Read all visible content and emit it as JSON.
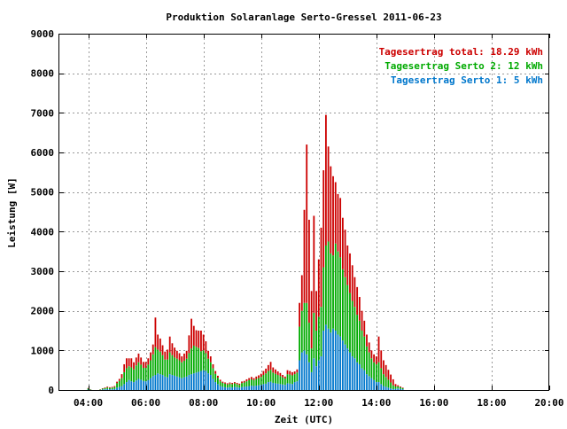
{
  "chart_data": {
    "type": "bar",
    "title": "Produktion Solaranlage Serto-Gressel 2011-06-23",
    "xlabel": "Zeit (UTC)",
    "ylabel": "Leistung [W]",
    "xlim_hours": [
      3,
      20
    ],
    "ylim": [
      0,
      9000
    ],
    "y_ticks": [
      0,
      1000,
      2000,
      3000,
      4000,
      5000,
      6000,
      7000,
      8000,
      9000
    ],
    "x_tick_hours": [
      4,
      6,
      8,
      10,
      12,
      14,
      16,
      18,
      20
    ],
    "x_tick_labels": [
      "04:00",
      "06:00",
      "08:00",
      "10:00",
      "12:00",
      "14:00",
      "16:00",
      "18:00",
      "20:00"
    ],
    "grid": true,
    "legend_position": "top-right",
    "stacked": true,
    "bar_interval_minutes": 5,
    "start_time": "04:00",
    "legend": [
      {
        "text": "Tagesertrag total: 18.29 kWh",
        "color": "#cc0000"
      },
      {
        "text": "Tagesertrag Serto 2: 12 kWh",
        "color": "#00aa00"
      },
      {
        "text": "Tagesertrag Serto 1: 5 kWh",
        "color": "#0077cc"
      }
    ],
    "series": [
      {
        "color": "#0077cc",
        "values": [
          10,
          5,
          0,
          0,
          0,
          0,
          15,
          20,
          25,
          20,
          20,
          25,
          60,
          80,
          100,
          150,
          200,
          250,
          220,
          200,
          240,
          280,
          260,
          230,
          220,
          250,
          300,
          350,
          380,
          420,
          400,
          380,
          340,
          320,
          400,
          380,
          360,
          340,
          320,
          300,
          320,
          340,
          380,
          400,
          420,
          440,
          460,
          480,
          500,
          480,
          420,
          380,
          280,
          200,
          150,
          100,
          80,
          70,
          60,
          70,
          65,
          80,
          70,
          60,
          75,
          80,
          90,
          100,
          110,
          100,
          110,
          120,
          130,
          150,
          160,
          200,
          210,
          180,
          170,
          160,
          150,
          140,
          130,
          170,
          160,
          150,
          200,
          220,
          750,
          950,
          1000,
          900,
          700,
          450,
          800,
          600,
          750,
          850,
          1500,
          1650,
          1550,
          1450,
          1550,
          1500,
          1400,
          1350,
          1250,
          1150,
          1050,
          950,
          850,
          800,
          700,
          650,
          550,
          500,
          400,
          350,
          300,
          250,
          200,
          200,
          150,
          100,
          80,
          60,
          40,
          20,
          30,
          40,
          30,
          20
        ]
      },
      {
        "color": "#00aa00",
        "values": [
          30,
          10,
          0,
          0,
          0,
          10,
          20,
          30,
          40,
          30,
          40,
          50,
          110,
          150,
          200,
          300,
          350,
          350,
          350,
          320,
          380,
          420,
          380,
          330,
          340,
          390,
          450,
          550,
          700,
          600,
          570,
          500,
          430,
          450,
          550,
          500,
          460,
          450,
          430,
          400,
          420,
          450,
          550,
          650,
          700,
          650,
          600,
          500,
          500,
          450,
          370,
          320,
          270,
          210,
          160,
          120,
          100,
          90,
          80,
          90,
          85,
          90,
          80,
          70,
          100,
          110,
          130,
          150,
          160,
          150,
          170,
          180,
          200,
          230,
          260,
          280,
          300,
          260,
          240,
          220,
          200,
          180,
          160,
          230,
          230,
          220,
          200,
          220,
          850,
          1050,
          1200,
          1300,
          1000,
          600,
          1150,
          900,
          1100,
          1250,
          1600,
          2000,
          2200,
          2000,
          1850,
          2200,
          2100,
          2000,
          1800,
          1700,
          1600,
          1500,
          1400,
          1300,
          1200,
          1100,
          950,
          850,
          700,
          600,
          500,
          450,
          450,
          500,
          400,
          300,
          250,
          200,
          150,
          100,
          60,
          50,
          40,
          25
        ]
      },
      {
        "color": "#cc0000",
        "values": [
          10,
          5,
          0,
          0,
          0,
          5,
          10,
          15,
          20,
          20,
          20,
          25,
          40,
          50,
          100,
          200,
          250,
          200,
          230,
          180,
          200,
          220,
          180,
          150,
          150,
          160,
          200,
          250,
          750,
          380,
          330,
          250,
          200,
          250,
          400,
          300,
          250,
          200,
          180,
          150,
          180,
          200,
          450,
          750,
          500,
          420,
          440,
          520,
          400,
          300,
          200,
          150,
          100,
          70,
          50,
          40,
          30,
          30,
          30,
          30,
          30,
          30,
          30,
          30,
          40,
          40,
          50,
          50,
          60,
          50,
          60,
          70,
          80,
          100,
          120,
          150,
          200,
          130,
          110,
          90,
          80,
          60,
          50,
          100,
          90,
          80,
          70,
          80,
          600,
          900,
          2350,
          4000,
          2600,
          1450,
          2450,
          1000,
          1450,
          2000,
          2450,
          3300,
          2400,
          2200,
          2000,
          1550,
          1450,
          1500,
          1300,
          1200,
          1000,
          1000,
          900,
          750,
          700,
          600,
          500,
          400,
          300,
          250,
          200,
          200,
          200,
          650,
          450,
          350,
          300,
          250,
          200,
          150,
          60,
          30,
          20,
          15
        ]
      }
    ]
  }
}
